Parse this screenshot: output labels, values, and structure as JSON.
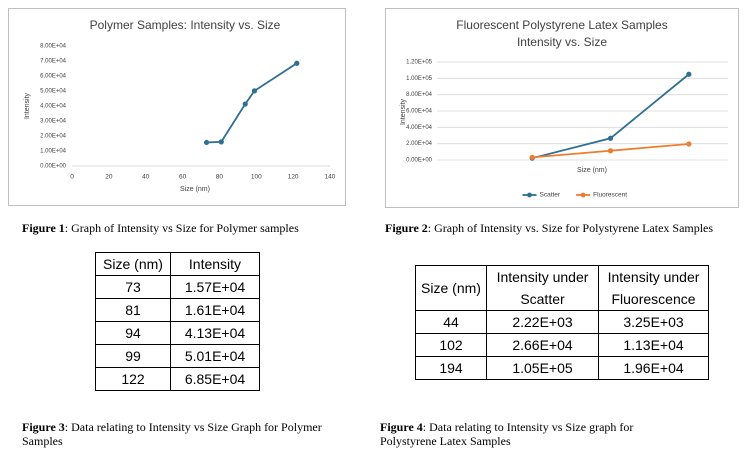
{
  "chart_data": [
    {
      "type": "line",
      "title": "Polymer Samples: Intensity vs. Size",
      "x_label": "Size (nm)",
      "y_label": "Intensity",
      "x": [
        73,
        81,
        94,
        99,
        122
      ],
      "series": [
        {
          "color": "#2e6f92",
          "values": [
            15700,
            16100,
            41300,
            50100,
            68500
          ]
        }
      ],
      "xlim": [
        0,
        140
      ],
      "xticks": [
        0,
        20,
        40,
        60,
        80,
        100,
        120,
        140
      ],
      "ylim": [
        0,
        80000
      ],
      "yticks": [
        {
          "value": 0,
          "label": "0.00E+00"
        },
        {
          "value": 10000,
          "label": "1.00E+04"
        },
        {
          "value": 20000,
          "label": "2.00E+04"
        },
        {
          "value": 30000,
          "label": "3.00E+04"
        },
        {
          "value": 40000,
          "label": "4.00E+04"
        },
        {
          "value": 50000,
          "label": "5.00E+04"
        },
        {
          "value": 60000,
          "label": "6.00E+04"
        },
        {
          "value": 70000,
          "label": "7.00E+04"
        },
        {
          "value": 80000,
          "label": "8.00E+04"
        }
      ],
      "grid": false,
      "markers": true
    },
    {
      "type": "line",
      "title": [
        "Fluorescent Polystyrene Latex Samples",
        "Intensity vs. Size"
      ],
      "x_label": "Size (nm)",
      "y_label": "Intensity",
      "categories": [
        null,
        null,
        null
      ],
      "series": [
        {
          "name": "Scatter",
          "color": "#2e6f92",
          "values": [
            2220,
            26600,
            105000
          ]
        },
        {
          "name": "Fluorescent",
          "color": "#ed7d31",
          "values": [
            3250,
            11300,
            19600
          ]
        }
      ],
      "ylim": [
        0,
        120000
      ],
      "yticks": [
        {
          "value": 0,
          "label": "0.00E+00"
        },
        {
          "value": 20000,
          "label": "2.00E+04"
        },
        {
          "value": 40000,
          "label": "4.00E+04"
        },
        {
          "value": 60000,
          "label": "6.00E+04"
        },
        {
          "value": 80000,
          "label": "8.00E+04"
        },
        {
          "value": 100000,
          "label": "1.00E+05"
        },
        {
          "value": 120000,
          "label": "1.20E+05"
        }
      ],
      "grid": true,
      "markers": true,
      "legend": "bottom"
    }
  ],
  "captions": [
    {
      "label": "Figure 1",
      "text": ": Graph of Intensity vs Size for Polymer samples"
    },
    {
      "label": "Figure 2",
      "text": ": Graph of Intensity vs. Size for Polystyrene Latex Samples"
    },
    {
      "label": "Figure 3",
      "text": ": Data relating to Intensity vs Size Graph for Polymer Samples"
    },
    {
      "label": "Figure 4",
      "text": ": Data relating to Intensity vs Size graph for Polystyrene Latex Samples"
    }
  ],
  "tables": [
    {
      "header": [
        "Size (nm)",
        "Intensity"
      ],
      "rows": [
        [
          73,
          "1.57E+04"
        ],
        [
          81,
          "1.61E+04"
        ],
        [
          94,
          "4.13E+04"
        ],
        [
          99,
          "5.01E+04"
        ],
        [
          122,
          "6.85E+04"
        ]
      ]
    },
    {
      "header": [
        "Size (nm)",
        "Intensity under Scatter",
        "Intensity under Fluorescence"
      ],
      "rows": [
        [
          44,
          "2.22E+03",
          "3.25E+03"
        ],
        [
          102,
          "2.66E+04",
          "1.13E+04"
        ],
        [
          194,
          "1.05E+05",
          "1.96E+04"
        ]
      ]
    }
  ]
}
